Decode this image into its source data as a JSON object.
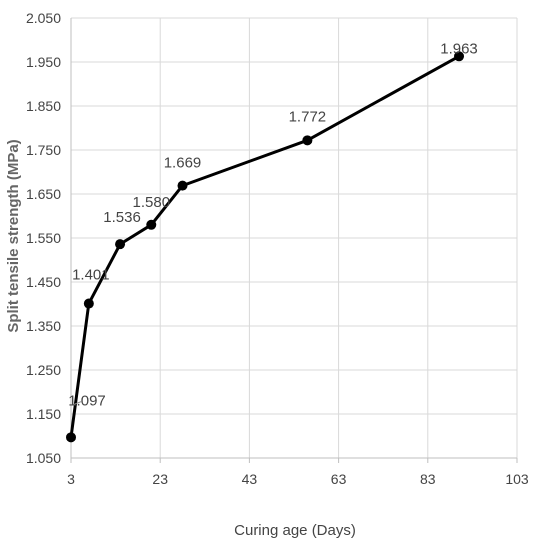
{
  "chart_data": {
    "type": "line",
    "title": "",
    "xlabel": "Curing age (Days)",
    "ylabel": "Split tensile strength (MPa)",
    "xlim": [
      3,
      103
    ],
    "ylim": [
      1.05,
      2.05
    ],
    "x_ticks": [
      "3",
      "23",
      "43",
      "63",
      "83",
      "103"
    ],
    "y_ticks": [
      "1.050",
      "1.150",
      "1.250",
      "1.350",
      "1.450",
      "1.550",
      "1.650",
      "1.750",
      "1.850",
      "1.950",
      "2.050"
    ],
    "grid": true,
    "legend": "none",
    "series": [
      {
        "color": "#000000",
        "x": [
          3,
          7,
          14,
          21,
          28,
          56,
          90
        ],
        "y": [
          1.097,
          1.401,
          1.536,
          1.58,
          1.669,
          1.772,
          1.963
        ],
        "labels": [
          "1.097",
          "1.401",
          "1.536",
          "1.580",
          "1.669",
          "1.772",
          "1.963"
        ]
      }
    ]
  }
}
